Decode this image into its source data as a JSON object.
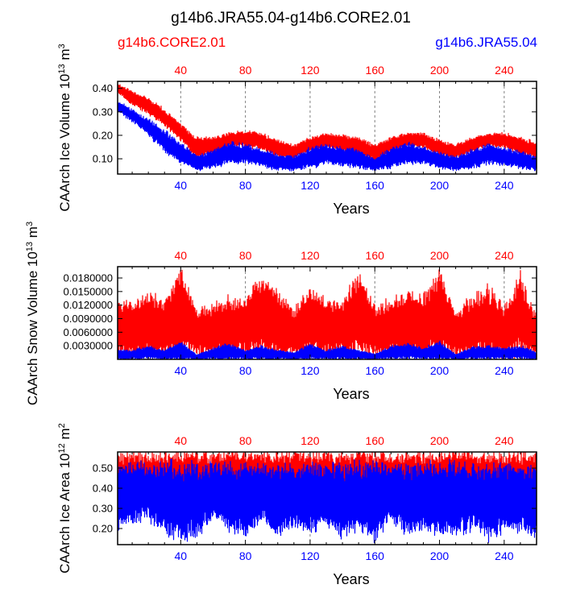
{
  "page": {
    "title": "g14b6.JRA55.04-g14b6.CORE2.01",
    "legend_left": "g14b6.CORE2.01",
    "legend_right": "g14b6.JRA55.04"
  },
  "colors": {
    "core": "#ff0000",
    "jra": "#0000ff",
    "axis": "#000000",
    "grid": "#808080"
  },
  "chart_data": [
    {
      "type": "line",
      "ylabel": "CAArch Ice Volume 10",
      "ylabel_exp": "13",
      "ylabel_unit": " m",
      "ylabel_unit_exp": "3",
      "xlabel": "Years",
      "xlim": [
        1,
        260
      ],
      "ylim": [
        0.035,
        0.43
      ],
      "yticks": [
        0.1,
        0.2,
        0.3,
        0.4
      ],
      "ytick_labels": [
        "0.10",
        "0.20",
        "0.30",
        "0.40"
      ],
      "xticks": [
        40,
        80,
        120,
        160,
        200,
        240
      ],
      "xtick_labels": [
        "40",
        "80",
        "120",
        "160",
        "200",
        "240"
      ],
      "top_ticks_color": "red",
      "bottom_ticks_color": "blue",
      "grid_x": [
        40,
        80,
        120,
        160,
        200,
        240
      ],
      "series": [
        {
          "name": "g14b6.CORE2.01",
          "color": "red",
          "x": [
            1,
            10,
            20,
            30,
            40,
            50,
            60,
            70,
            80,
            90,
            100,
            110,
            120,
            130,
            140,
            150,
            160,
            170,
            180,
            190,
            200,
            210,
            220,
            230,
            240,
            250,
            260
          ],
          "max": [
            0.42,
            0.39,
            0.36,
            0.31,
            0.25,
            0.19,
            0.19,
            0.21,
            0.22,
            0.21,
            0.18,
            0.16,
            0.19,
            0.21,
            0.2,
            0.19,
            0.16,
            0.19,
            0.21,
            0.21,
            0.18,
            0.16,
            0.19,
            0.21,
            0.21,
            0.19,
            0.17
          ],
          "min": [
            0.38,
            0.33,
            0.29,
            0.24,
            0.18,
            0.1,
            0.12,
            0.15,
            0.15,
            0.14,
            0.11,
            0.1,
            0.13,
            0.15,
            0.13,
            0.12,
            0.09,
            0.13,
            0.15,
            0.15,
            0.11,
            0.1,
            0.13,
            0.15,
            0.15,
            0.12,
            0.1
          ]
        },
        {
          "name": "g14b6.JRA55.04",
          "color": "blue",
          "x": [
            1,
            10,
            20,
            30,
            40,
            50,
            60,
            70,
            80,
            90,
            100,
            110,
            120,
            130,
            140,
            150,
            160,
            170,
            180,
            190,
            200,
            210,
            220,
            230,
            240,
            250,
            260
          ],
          "max": [
            0.35,
            0.31,
            0.27,
            0.22,
            0.17,
            0.11,
            0.14,
            0.17,
            0.16,
            0.14,
            0.12,
            0.11,
            0.15,
            0.16,
            0.15,
            0.14,
            0.1,
            0.15,
            0.17,
            0.15,
            0.13,
            0.11,
            0.14,
            0.16,
            0.15,
            0.13,
            0.11
          ],
          "min": [
            0.3,
            0.26,
            0.2,
            0.13,
            0.08,
            0.05,
            0.06,
            0.08,
            0.08,
            0.07,
            0.05,
            0.05,
            0.06,
            0.08,
            0.07,
            0.06,
            0.05,
            0.06,
            0.08,
            0.08,
            0.06,
            0.05,
            0.06,
            0.08,
            0.07,
            0.06,
            0.05
          ]
        }
      ]
    },
    {
      "type": "line",
      "ylabel": "CAArch Snow Volume 10",
      "ylabel_exp": "13",
      "ylabel_unit": " m",
      "ylabel_unit_exp": "3",
      "xlabel": "Years",
      "xlim": [
        1,
        260
      ],
      "ylim": [
        0.0,
        0.0205
      ],
      "yticks": [
        0.003,
        0.006,
        0.009,
        0.012,
        0.015,
        0.018
      ],
      "ytick_labels": [
        "0.0030000",
        "0.0060000",
        "0.0090000",
        "0.0120000",
        "0.0150000",
        "0.0180000"
      ],
      "xticks": [
        40,
        80,
        120,
        160,
        200,
        240
      ],
      "xtick_labels": [
        "40",
        "80",
        "120",
        "160",
        "200",
        "240"
      ],
      "top_ticks_color": "red",
      "bottom_ticks_color": "blue",
      "grid_x": [
        40,
        80,
        160,
        200,
        240
      ],
      "series": [
        {
          "name": "g14b6.CORE2.01",
          "color": "red",
          "x": [
            1,
            10,
            20,
            30,
            40,
            50,
            60,
            70,
            80,
            90,
            100,
            110,
            120,
            130,
            140,
            150,
            160,
            170,
            180,
            190,
            200,
            210,
            220,
            230,
            240,
            250,
            260
          ],
          "max": [
            0.013,
            0.012,
            0.015,
            0.013,
            0.0205,
            0.011,
            0.012,
            0.014,
            0.013,
            0.019,
            0.015,
            0.011,
            0.016,
            0.013,
            0.013,
            0.019,
            0.012,
            0.013,
            0.015,
            0.014,
            0.02,
            0.01,
            0.014,
            0.016,
            0.012,
            0.019,
            0.01
          ],
          "min": [
            0.001,
            0.0008,
            0.001,
            0.0008,
            0.001,
            0.0008,
            0.0008,
            0.001,
            0.0008,
            0.001,
            0.0008,
            0.0008,
            0.001,
            0.0008,
            0.001,
            0.0008,
            0.0008,
            0.001,
            0.0008,
            0.001,
            0.0008,
            0.0008,
            0.001,
            0.0008,
            0.001,
            0.0008,
            0.0008
          ]
        },
        {
          "name": "g14b6.JRA55.04",
          "color": "blue",
          "x": [
            1,
            10,
            20,
            30,
            40,
            50,
            60,
            70,
            80,
            90,
            100,
            110,
            120,
            130,
            140,
            150,
            160,
            170,
            180,
            190,
            200,
            210,
            220,
            230,
            240,
            250,
            260
          ],
          "max": [
            0.002,
            0.002,
            0.003,
            0.002,
            0.004,
            0.001,
            0.0025,
            0.0035,
            0.002,
            0.003,
            0.002,
            0.0015,
            0.0035,
            0.002,
            0.003,
            0.002,
            0.0012,
            0.003,
            0.0035,
            0.0025,
            0.004,
            0.0012,
            0.0028,
            0.003,
            0.0025,
            0.003,
            0.0015
          ],
          "min": [
            0.0,
            0.0,
            0.0,
            0.0,
            0.0,
            0.0,
            0.0,
            0.0,
            0.0,
            0.0,
            0.0,
            0.0,
            0.0,
            0.0,
            0.0,
            0.0,
            0.0,
            0.0,
            0.0,
            0.0,
            0.0,
            0.0,
            0.0,
            0.0,
            0.0,
            0.0,
            0.0
          ]
        }
      ]
    },
    {
      "type": "line",
      "ylabel": "CAArch Ice Area 10",
      "ylabel_exp": "12",
      "ylabel_unit": " m",
      "ylabel_unit_exp": "2",
      "xlabel": "Years",
      "xlim": [
        1,
        260
      ],
      "ylim": [
        0.12,
        0.58
      ],
      "yticks": [
        0.2,
        0.3,
        0.4,
        0.5
      ],
      "ytick_labels": [
        "0.20",
        "0.30",
        "0.40",
        "0.50"
      ],
      "xticks": [
        40,
        80,
        120,
        160,
        200,
        240
      ],
      "xtick_labels": [
        "40",
        "80",
        "120",
        "160",
        "200",
        "240"
      ],
      "top_ticks_color": "red",
      "bottom_ticks_color": "blue",
      "grid_x": [
        120
      ],
      "series": [
        {
          "name": "g14b6.CORE2.01",
          "color": "red",
          "x": [
            1,
            10,
            20,
            30,
            40,
            50,
            60,
            70,
            80,
            90,
            100,
            110,
            120,
            130,
            140,
            150,
            160,
            170,
            180,
            190,
            200,
            210,
            220,
            230,
            240,
            250,
            260
          ],
          "max": [
            0.58,
            0.58,
            0.58,
            0.58,
            0.58,
            0.58,
            0.58,
            0.58,
            0.58,
            0.58,
            0.58,
            0.58,
            0.58,
            0.58,
            0.58,
            0.58,
            0.58,
            0.58,
            0.58,
            0.58,
            0.58,
            0.58,
            0.58,
            0.58,
            0.58,
            0.58,
            0.58
          ],
          "min": [
            0.28,
            0.3,
            0.32,
            0.3,
            0.3,
            0.34,
            0.3,
            0.34,
            0.32,
            0.3,
            0.33,
            0.31,
            0.3,
            0.32,
            0.34,
            0.3,
            0.33,
            0.3,
            0.32,
            0.3,
            0.3,
            0.33,
            0.32,
            0.3,
            0.3,
            0.31,
            0.3
          ]
        },
        {
          "name": "g14b6.JRA55.04",
          "color": "blue",
          "x": [
            1,
            10,
            20,
            30,
            40,
            50,
            60,
            70,
            80,
            90,
            100,
            110,
            120,
            130,
            140,
            150,
            160,
            170,
            180,
            190,
            200,
            210,
            220,
            230,
            240,
            250,
            260
          ],
          "max": [
            0.5,
            0.53,
            0.52,
            0.52,
            0.52,
            0.52,
            0.52,
            0.52,
            0.51,
            0.52,
            0.52,
            0.52,
            0.52,
            0.52,
            0.52,
            0.52,
            0.52,
            0.52,
            0.52,
            0.52,
            0.52,
            0.52,
            0.52,
            0.52,
            0.52,
            0.52,
            0.52
          ],
          "min": [
            0.2,
            0.22,
            0.25,
            0.18,
            0.14,
            0.16,
            0.25,
            0.2,
            0.15,
            0.24,
            0.16,
            0.2,
            0.18,
            0.21,
            0.16,
            0.18,
            0.15,
            0.24,
            0.16,
            0.2,
            0.14,
            0.18,
            0.2,
            0.15,
            0.18,
            0.2,
            0.15
          ]
        }
      ]
    }
  ]
}
